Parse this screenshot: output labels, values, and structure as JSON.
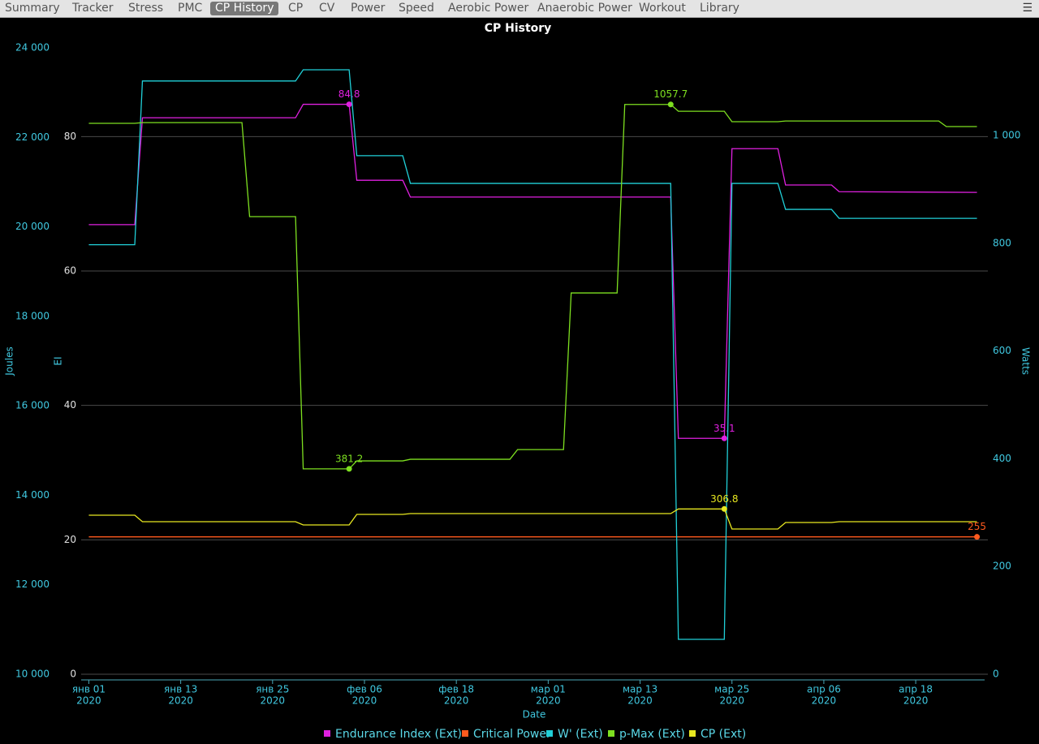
{
  "tabs": [
    "Summary",
    "Tracker",
    "Stress",
    "PMC",
    "CP History",
    "CP",
    "CV",
    "Power",
    "Speed",
    "Aerobic Power",
    "Anaerobic Power",
    "Workout",
    "Library"
  ],
  "selected_tab": 4,
  "chart_data": {
    "type": "line",
    "title": "CP History",
    "xlabel": "Date",
    "xlim": [
      "2019-12-31",
      "2020-04-27"
    ],
    "xticks": [
      {
        "value": "2020-01-01",
        "label": "янв 01",
        "year": "2020"
      },
      {
        "value": "2020-01-13",
        "label": "янв 13",
        "year": "2020"
      },
      {
        "value": "2020-01-25",
        "label": "янв 25",
        "year": "2020"
      },
      {
        "value": "2020-02-06",
        "label": "фев 06",
        "year": "2020"
      },
      {
        "value": "2020-02-18",
        "label": "фев 18",
        "year": "2020"
      },
      {
        "value": "2020-03-01",
        "label": "мар 01",
        "year": "2020"
      },
      {
        "value": "2020-03-13",
        "label": "мар 13",
        "year": "2020"
      },
      {
        "value": "2020-03-25",
        "label": "мар 25",
        "year": "2020"
      },
      {
        "value": "2020-04-06",
        "label": "апр 06",
        "year": "2020"
      },
      {
        "value": "2020-04-18",
        "label": "апр 18",
        "year": "2020"
      }
    ],
    "ylabel": "Joules",
    "ylim": [
      10000,
      24000
    ],
    "yticks": [
      {
        "value": 10000,
        "label": "10 000"
      },
      {
        "value": 12000,
        "label": "12 000"
      },
      {
        "value": 14000,
        "label": "14 000"
      },
      {
        "value": 16000,
        "label": "16 000"
      },
      {
        "value": 18000,
        "label": "18 000"
      },
      {
        "value": 20000,
        "label": "20 000"
      },
      {
        "value": 22000,
        "label": "22 000"
      },
      {
        "value": 24000,
        "label": "24 000"
      }
    ],
    "y3label": "EI",
    "y3lim": [
      0,
      93.2
    ],
    "y3ticks": [
      0,
      20,
      40,
      60,
      80
    ],
    "y2label": "Watts",
    "y2lim": [
      0,
      1162.7
    ],
    "y2ticks": [
      0,
      200,
      400,
      600,
      800,
      {
        "value": 1000,
        "label": "1 000"
      }
    ],
    "grid_axis": "y3",
    "series": [
      {
        "name": "Endurance Index (Ext)",
        "color": "#e020e0",
        "axis": "y3",
        "x": [
          "2020-01-01",
          "2020-01-07",
          "2020-01-08",
          "2020-01-28",
          "2020-01-29",
          "2020-02-04",
          "2020-02-05",
          "2020-02-11",
          "2020-02-12",
          "2020-03-17",
          "2020-03-18",
          "2020-03-24",
          "2020-03-25",
          "2020-03-31",
          "2020-04-01",
          "2020-04-07",
          "2020-04-08",
          "2020-04-26"
        ],
        "values": [
          66.9,
          66.9,
          82.8,
          82.8,
          84.8,
          84.8,
          73.5,
          73.5,
          71.0,
          71.0,
          35.1,
          35.1,
          78.2,
          78.2,
          72.8,
          72.8,
          71.8,
          71.7
        ],
        "labeled": [
          5,
          11
        ]
      },
      {
        "name": "Critical Power",
        "color": "#ff5a1e",
        "axis": "y2",
        "x": [
          "2020-01-01",
          "2020-04-26"
        ],
        "values": [
          255,
          255
        ],
        "labeled": [
          1
        ]
      },
      {
        "name": "W' (Ext)",
        "color": "#20d0d8",
        "axis": "y",
        "x": [
          "2020-01-01",
          "2020-01-07",
          "2020-01-08",
          "2020-01-28",
          "2020-01-29",
          "2020-02-04",
          "2020-02-05",
          "2020-02-11",
          "2020-02-12",
          "2020-03-17",
          "2020-03-18",
          "2020-03-24",
          "2020-03-25",
          "2020-03-31",
          "2020-04-01",
          "2020-04-07",
          "2020-04-08",
          "2020-04-26"
        ],
        "values": [
          19600,
          19600,
          23260,
          23260,
          23510,
          23510,
          21590,
          21590,
          20970,
          20970,
          10780,
          10780,
          20970,
          20970,
          20390,
          20390,
          20190,
          20190
        ],
        "labeled": []
      },
      {
        "name": "p-Max (Ext)",
        "color": "#7ee020",
        "axis": "y2",
        "x": [
          "2020-01-01",
          "2020-01-07",
          "2020-01-08",
          "2020-01-21",
          "2020-01-22",
          "2020-01-28",
          "2020-01-29",
          "2020-02-04",
          "2020-02-05",
          "2020-02-11",
          "2020-02-12",
          "2020-02-25",
          "2020-02-26",
          "2020-03-03",
          "2020-03-04",
          "2020-03-10",
          "2020-03-11",
          "2020-03-17",
          "2020-03-18",
          "2020-03-24",
          "2020-03-25",
          "2020-03-31",
          "2020-04-01",
          "2020-04-21",
          "2020-04-22",
          "2020-04-26"
        ],
        "values": [
          1022.6,
          1022.6,
          1024,
          1024,
          849.4,
          849.4,
          381.2,
          381.2,
          396,
          396,
          399,
          399,
          417,
          417,
          707.8,
          707.8,
          1057.7,
          1057.7,
          1045,
          1045,
          1025.6,
          1025.6,
          1027,
          1027,
          1016.6,
          1016.6
        ],
        "labeled": [
          7,
          17
        ]
      },
      {
        "name": "CP (Ext)",
        "color": "#e8e820",
        "axis": "y2",
        "x": [
          "2020-01-01",
          "2020-01-07",
          "2020-01-08",
          "2020-01-28",
          "2020-01-29",
          "2020-02-04",
          "2020-02-05",
          "2020-02-11",
          "2020-02-12",
          "2020-03-17",
          "2020-03-18",
          "2020-03-24",
          "2020-03-25",
          "2020-03-31",
          "2020-04-01",
          "2020-04-07",
          "2020-04-08",
          "2020-04-26"
        ],
        "values": [
          295.2,
          295.2,
          283.1,
          283.1,
          277.1,
          277.1,
          296.7,
          296.7,
          298.2,
          298.2,
          306.8,
          306.8,
          269.6,
          269.6,
          281.6,
          281.6,
          283.1,
          283.1
        ],
        "labeled": [
          11
        ]
      }
    ]
  }
}
